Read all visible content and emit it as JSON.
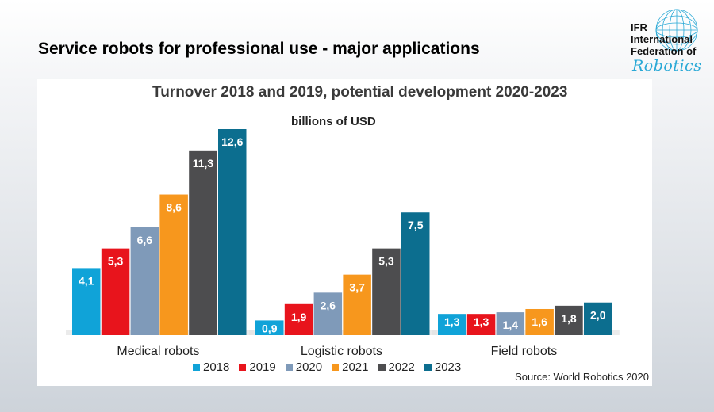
{
  "slide": {
    "title": "Service robots for professional use - major applications"
  },
  "logo": {
    "lines": [
      "IFR",
      "International",
      "Federation of"
    ],
    "script": "Robotics"
  },
  "chart_data": {
    "type": "bar",
    "title": "Turnover 2018 and 2019, potential development 2020-2023",
    "subtitle": "billions of USD",
    "categories": [
      "Medical robots",
      "Logistic robots",
      "Field robots"
    ],
    "series": [
      {
        "name": "2018",
        "color": "#10a3d8",
        "values": [
          4.1,
          0.9,
          1.3
        ],
        "labels": [
          "4,1",
          "0,9",
          "1,3"
        ]
      },
      {
        "name": "2019",
        "color": "#e8141c",
        "values": [
          5.3,
          1.9,
          1.3
        ],
        "labels": [
          "5,3",
          "1,9",
          "1,3"
        ]
      },
      {
        "name": "2020",
        "color": "#7f9ab9",
        "values": [
          6.6,
          2.6,
          1.4
        ],
        "labels": [
          "6,6",
          "2,6",
          "1,4"
        ]
      },
      {
        "name": "2021",
        "color": "#f7971d",
        "values": [
          8.6,
          3.7,
          1.6
        ],
        "labels": [
          "8,6",
          "3,7",
          "1,6"
        ]
      },
      {
        "name": "2022",
        "color": "#4d4d4f",
        "values": [
          11.3,
          5.3,
          1.8
        ],
        "labels": [
          "11,3",
          "5,3",
          "1,8"
        ]
      },
      {
        "name": "2023",
        "color": "#0c6e8f",
        "values": [
          12.6,
          7.5,
          2.0
        ],
        "labels": [
          "12,6",
          "7,5",
          "2,0"
        ]
      }
    ],
    "ylim": [
      0,
      12.6
    ],
    "grid": false,
    "legend_position": "bottom",
    "source": "Source: World Robotics 2020"
  }
}
